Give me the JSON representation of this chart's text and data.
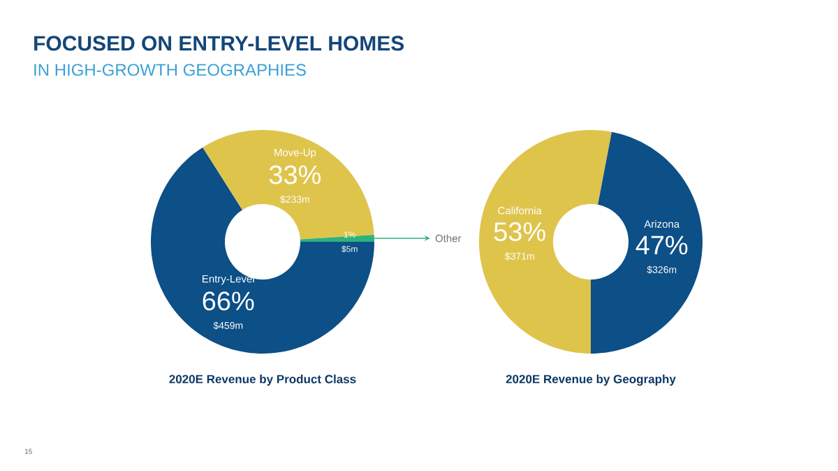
{
  "chart_data": [
    {
      "type": "donut",
      "title": "FOCUSED ON ENTRY-LEVEL HOMES",
      "subtitle": "IN HIGH-GROWTH GEOGRAPHIES",
      "xlabel": "2020E Revenue by Product Class",
      "categories": [
        "Entry-Level",
        "Move-Up",
        "Other"
      ],
      "values": [
        66,
        33,
        1
      ],
      "colors": [
        "#0d4f87",
        "#dfc44c",
        "#2db37a"
      ],
      "value_labels": [
        "66%",
        "33%",
        "1%"
      ],
      "annotations": [
        "$459m",
        "$233m",
        "$5m",
        "15"
      ]
    },
    {
      "type": "donut",
      "xlabel": "2020E Revenue by Geography",
      "categories": [
        "California",
        "Arizona"
      ],
      "values": [
        53,
        47
      ],
      "colors": [
        "#dfc44c",
        "#0d4f87"
      ],
      "value_labels": [
        "53%",
        "47%"
      ],
      "annotations": [
        "$371m",
        "$326m"
      ]
    }
  ]
}
